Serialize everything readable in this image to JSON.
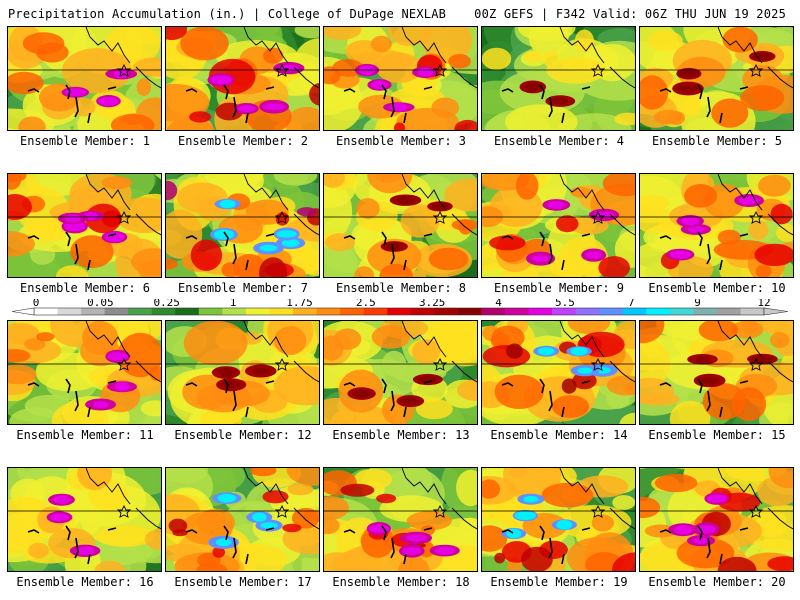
{
  "header": {
    "left_title": "Precipitation Accumulation (in.) | College of DuPage NEXLAB",
    "right_title": "00Z GEFS | F342 Valid: 06Z THU JUN 19 2025"
  },
  "panels": [
    {
      "label": "Ensemble Member: 1",
      "intensity": 0.55,
      "max_color": "magenta"
    },
    {
      "label": "Ensemble Member: 2",
      "intensity": 0.75,
      "max_color": "magenta"
    },
    {
      "label": "Ensemble Member: 3",
      "intensity": 0.7,
      "max_color": "magenta"
    },
    {
      "label": "Ensemble Member: 4",
      "intensity": 0.35,
      "max_color": "crimson"
    },
    {
      "label": "Ensemble Member: 5",
      "intensity": 0.55,
      "max_color": "crimson"
    },
    {
      "label": "Ensemble Member: 6",
      "intensity": 0.7,
      "max_color": "magenta"
    },
    {
      "label": "Ensemble Member: 7",
      "intensity": 0.92,
      "max_color": "cyan"
    },
    {
      "label": "Ensemble Member: 8",
      "intensity": 0.62,
      "max_color": "crimson"
    },
    {
      "label": "Ensemble Member: 9",
      "intensity": 0.68,
      "max_color": "magenta"
    },
    {
      "label": "Ensemble Member: 10",
      "intensity": 0.72,
      "max_color": "magenta"
    },
    {
      "label": "Ensemble Member: 11",
      "intensity": 0.55,
      "max_color": "magenta"
    },
    {
      "label": "Ensemble Member: 12",
      "intensity": 0.5,
      "max_color": "crimson"
    },
    {
      "label": "Ensemble Member: 13",
      "intensity": 0.5,
      "max_color": "crimson"
    },
    {
      "label": "Ensemble Member: 14",
      "intensity": 0.85,
      "max_color": "cyan"
    },
    {
      "label": "Ensemble Member: 15",
      "intensity": 0.55,
      "max_color": "crimson"
    },
    {
      "label": "Ensemble Member: 16",
      "intensity": 0.4,
      "max_color": "magenta"
    },
    {
      "label": "Ensemble Member: 17",
      "intensity": 0.75,
      "max_color": "cyan"
    },
    {
      "label": "Ensemble Member: 18",
      "intensity": 0.82,
      "max_color": "magenta"
    },
    {
      "label": "Ensemble Member: 19",
      "intensity": 0.78,
      "max_color": "cyan"
    },
    {
      "label": "Ensemble Member: 20",
      "intensity": 0.8,
      "max_color": "magenta"
    }
  ],
  "colorbar": {
    "tick_labels": [
      "0",
      "0.05",
      "0.25",
      "1",
      "1.75",
      "2.5",
      "3.25",
      "4",
      "5.5",
      "7",
      "9",
      "12"
    ],
    "colors": [
      "#ffffff",
      "#d9d9d9",
      "#b3b3b3",
      "#8c8c8c",
      "#4aa24a",
      "#2e8b2e",
      "#1a6e1a",
      "#7cc43a",
      "#b4e04a",
      "#f0f030",
      "#ffe020",
      "#ffb020",
      "#ff8c10",
      "#ff6400",
      "#ff3c00",
      "#e60000",
      "#c00000",
      "#a00000",
      "#880000",
      "#b4006e",
      "#d000a0",
      "#e600e6",
      "#c040ff",
      "#9070ff",
      "#6090ff",
      "#00c8ff",
      "#00f0ff",
      "#40d8d8",
      "#80b0b0",
      "#a0a0a0",
      "#c8c8c8"
    ]
  }
}
